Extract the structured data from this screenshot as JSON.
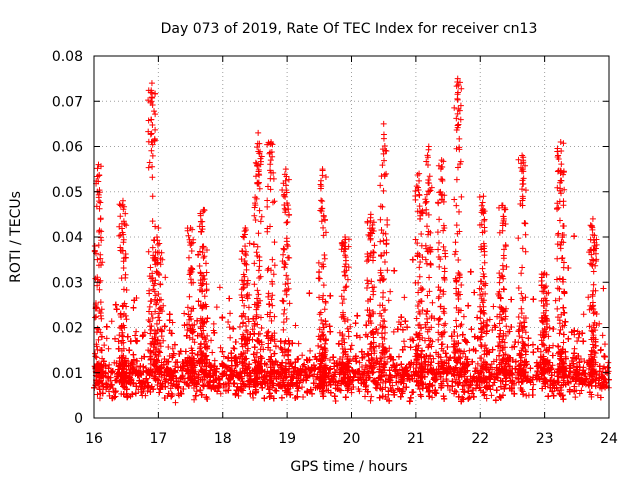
{
  "chart_data": {
    "type": "scatter",
    "title": "Day 073 of 2019, Rate Of TEC Index for receiver cn13",
    "xlabel": "GPS time / hours",
    "ylabel": "ROTI / TECUs",
    "xlim": [
      16,
      24
    ],
    "ylim": [
      0,
      0.08
    ],
    "x_ticks": [
      "16",
      "17",
      "18",
      "19",
      "20",
      "21",
      "22",
      "23",
      "24"
    ],
    "y_ticks": [
      "0",
      "0.01",
      "0.02",
      "0.03",
      "0.04",
      "0.05",
      "0.06",
      "0.07",
      "0.08"
    ],
    "grid": true,
    "marker": "+",
    "series_color": "#ff0000",
    "gaps": [
      [
        22.83,
        22.87
      ]
    ],
    "baseline": {
      "median": 0.009,
      "spread": 0.004,
      "min": 0.003,
      "points_per_hour": 1100
    },
    "spikes": [
      {
        "x": 16.07,
        "peak": 0.056
      },
      {
        "x": 16.45,
        "peak": 0.048
      },
      {
        "x": 16.9,
        "peak": 0.074
      },
      {
        "x": 17.0,
        "peak": 0.042
      },
      {
        "x": 17.5,
        "peak": 0.042
      },
      {
        "x": 17.7,
        "peak": 0.046
      },
      {
        "x": 18.35,
        "peak": 0.042
      },
      {
        "x": 18.55,
        "peak": 0.063
      },
      {
        "x": 18.75,
        "peak": 0.061
      },
      {
        "x": 18.98,
        "peak": 0.055
      },
      {
        "x": 19.55,
        "peak": 0.055
      },
      {
        "x": 19.9,
        "peak": 0.04
      },
      {
        "x": 20.3,
        "peak": 0.045
      },
      {
        "x": 20.5,
        "peak": 0.065
      },
      {
        "x": 21.05,
        "peak": 0.054
      },
      {
        "x": 21.2,
        "peak": 0.06
      },
      {
        "x": 21.4,
        "peak": 0.057
      },
      {
        "x": 21.65,
        "peak": 0.075
      },
      {
        "x": 22.05,
        "peak": 0.049
      },
      {
        "x": 22.35,
        "peak": 0.047
      },
      {
        "x": 22.65,
        "peak": 0.058
      },
      {
        "x": 23.0,
        "peak": 0.032
      },
      {
        "x": 23.25,
        "peak": 0.061
      },
      {
        "x": 23.75,
        "peak": 0.044
      }
    ]
  }
}
